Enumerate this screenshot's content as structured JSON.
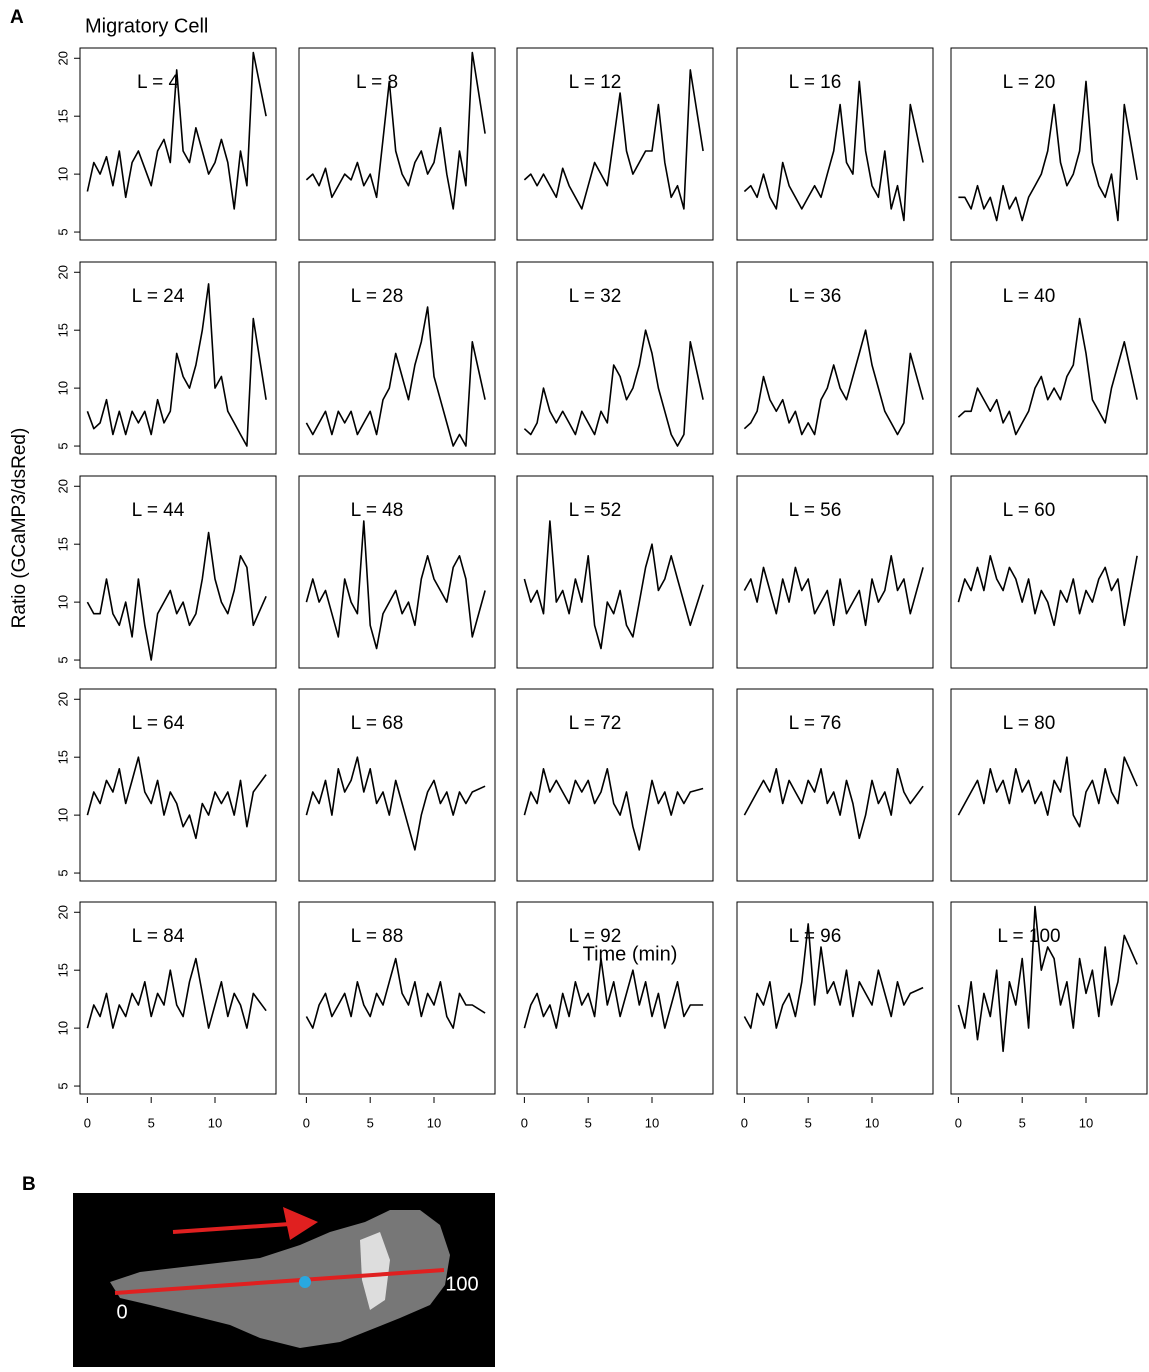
{
  "panel_labels": [
    "A",
    "B"
  ],
  "chart_data": {
    "type": "line",
    "title": "Migratory Cell",
    "xlabel": "Time (min)",
    "ylabel": "Ratio (GCaMP3/dsRed)",
    "xlim": [
      -0.5,
      14.7
    ],
    "ylim": [
      4.4,
      20.8
    ],
    "xticks": [
      0,
      5,
      10
    ],
    "yticks": [
      5,
      10,
      15,
      20
    ],
    "grid": false,
    "x": [
      0,
      0.5,
      1,
      1.5,
      2,
      2.5,
      3,
      3.5,
      4,
      4.5,
      5,
      5.5,
      6,
      6.5,
      7,
      7.5,
      8,
      8.5,
      9,
      9.5,
      10,
      10.5,
      11,
      11.5,
      12,
      12.5,
      13,
      14
    ],
    "series": [
      {
        "name": "L = 4",
        "color": "#000000",
        "values": [
          8.5,
          11,
          10,
          11.5,
          9,
          12,
          8,
          11,
          12,
          10.5,
          9,
          12,
          13,
          11,
          19,
          12,
          11,
          14,
          12,
          10,
          11,
          13,
          11,
          7,
          12,
          9,
          20.5,
          15
        ]
      },
      {
        "name": "L = 8",
        "color": "#000000",
        "values": [
          9.5,
          10,
          9,
          10.5,
          8,
          9,
          10,
          9.5,
          11,
          9,
          10,
          8,
          13,
          18,
          12,
          10,
          9,
          11,
          12,
          10,
          11,
          14,
          10,
          7,
          12,
          9,
          20.5,
          13.5
        ]
      },
      {
        "name": "L = 12",
        "color": "#000000",
        "values": [
          9.5,
          10,
          9,
          10,
          9,
          8,
          10.5,
          9,
          8,
          7,
          9,
          11,
          10,
          9,
          13,
          17,
          12,
          10,
          11,
          12,
          12,
          16,
          11,
          8,
          9,
          7,
          19,
          12
        ]
      },
      {
        "name": "L = 16",
        "color": "#000000",
        "values": [
          8.5,
          9,
          8,
          10,
          8,
          7,
          11,
          9,
          8,
          7,
          8,
          9,
          8,
          10,
          12,
          16,
          11,
          10,
          18,
          12,
          9,
          8,
          12,
          7,
          9,
          6,
          16,
          11
        ]
      },
      {
        "name": "L = 20",
        "color": "#000000",
        "values": [
          8,
          8,
          7,
          9,
          7,
          8,
          6,
          9,
          7,
          8,
          6,
          8,
          9,
          10,
          12,
          16,
          11,
          9,
          10,
          12,
          18,
          11,
          9,
          8,
          10,
          6,
          16,
          9.5
        ]
      },
      {
        "name": "L = 24",
        "color": "#000000",
        "values": [
          8,
          6.5,
          7,
          9,
          6,
          8,
          6,
          8,
          7,
          8,
          6,
          9,
          7,
          8,
          13,
          11,
          10,
          12,
          15,
          19,
          10,
          11,
          8,
          7,
          6,
          5,
          16,
          9
        ]
      },
      {
        "name": "L = 28",
        "color": "#000000",
        "values": [
          7,
          6,
          7,
          8,
          6,
          8,
          7,
          8,
          6,
          7,
          8,
          6,
          9,
          10,
          13,
          11,
          9,
          12,
          14,
          17,
          11,
          9,
          7,
          5,
          6,
          5,
          14,
          9
        ]
      },
      {
        "name": "L = 32",
        "color": "#000000",
        "values": [
          6.5,
          6,
          7,
          10,
          8,
          7,
          8,
          7,
          6,
          8,
          7,
          6,
          8,
          7,
          12,
          11,
          9,
          10,
          12,
          15,
          13,
          10,
          8,
          6,
          5,
          6,
          14,
          9
        ]
      },
      {
        "name": "L = 36",
        "color": "#000000",
        "values": [
          6.5,
          7,
          8,
          11,
          9,
          8,
          9,
          7,
          8,
          6,
          7,
          6,
          9,
          10,
          12,
          10,
          9,
          11,
          13,
          15,
          12,
          10,
          8,
          7,
          6,
          7,
          13,
          9
        ]
      },
      {
        "name": "L = 40",
        "color": "#000000",
        "values": [
          7.5,
          8,
          8,
          10,
          9,
          8,
          9,
          7,
          8,
          6,
          7,
          8,
          10,
          11,
          9,
          10,
          9,
          11,
          12,
          16,
          13,
          9,
          8,
          7,
          10,
          12,
          14,
          9
        ]
      },
      {
        "name": "L = 44",
        "color": "#000000",
        "values": [
          10,
          9,
          9,
          12,
          9,
          8,
          10,
          7,
          12,
          8,
          5,
          9,
          10,
          11,
          9,
          10,
          8,
          9,
          12,
          16,
          12,
          10,
          9,
          11,
          14,
          13,
          8,
          10.5
        ]
      },
      {
        "name": "L = 48",
        "color": "#000000",
        "values": [
          10,
          12,
          10,
          11,
          9,
          7,
          12,
          10,
          9,
          17,
          8,
          6,
          9,
          10,
          11,
          9,
          10,
          8,
          12,
          14,
          12,
          11,
          10,
          13,
          14,
          12,
          7,
          11
        ]
      },
      {
        "name": "L = 52",
        "color": "#000000",
        "values": [
          12,
          10,
          11,
          9,
          17,
          10,
          11,
          9,
          12,
          10,
          14,
          8,
          6,
          10,
          9,
          11,
          8,
          7,
          10,
          13,
          15,
          11,
          12,
          14,
          12,
          10,
          8,
          11.5
        ]
      },
      {
        "name": "L = 56",
        "color": "#000000",
        "values": [
          11,
          12,
          10,
          13,
          11,
          9,
          12,
          10,
          13,
          11,
          12,
          9,
          10,
          11,
          8,
          12,
          9,
          10,
          11,
          8,
          12,
          10,
          11,
          14,
          11,
          12,
          9,
          13
        ]
      },
      {
        "name": "L = 60",
        "color": "#000000",
        "values": [
          10,
          12,
          11,
          13,
          11,
          14,
          12,
          11,
          13,
          12,
          10,
          12,
          9,
          11,
          10,
          8,
          11,
          10,
          12,
          9,
          11,
          10,
          12,
          13,
          11,
          12,
          8,
          14
        ]
      },
      {
        "name": "L = 64",
        "color": "#000000",
        "values": [
          10,
          12,
          11,
          13,
          12,
          14,
          11,
          13,
          15,
          12,
          11,
          13,
          10,
          12,
          11,
          9,
          10,
          8,
          11,
          10,
          12,
          11,
          12,
          10,
          13,
          9,
          12,
          13.5
        ]
      },
      {
        "name": "L = 68",
        "color": "#000000",
        "values": [
          10,
          12,
          11,
          13,
          10,
          14,
          12,
          13,
          15,
          12,
          14,
          11,
          12,
          10,
          13,
          11,
          9,
          7,
          10,
          12,
          13,
          11,
          12,
          10,
          12,
          11,
          12,
          12.5
        ]
      },
      {
        "name": "L = 72",
        "color": "#000000",
        "values": [
          10,
          12,
          11,
          14,
          12,
          13,
          12,
          11,
          13,
          12,
          13,
          11,
          12,
          14,
          11,
          10,
          12,
          9,
          7,
          10,
          13,
          11,
          12,
          10,
          12,
          11,
          12,
          12.3
        ]
      },
      {
        "name": "L = 76",
        "color": "#000000",
        "values": [
          10,
          11,
          12,
          13,
          12,
          14,
          11,
          13,
          12,
          11,
          13,
          12,
          14,
          11,
          12,
          10,
          13,
          11,
          8,
          10,
          13,
          11,
          12,
          10,
          14,
          12,
          11,
          12.5
        ]
      },
      {
        "name": "L = 80",
        "color": "#000000",
        "values": [
          10,
          11,
          12,
          13,
          11,
          14,
          12,
          13,
          11,
          14,
          12,
          13,
          11,
          12,
          10,
          13,
          12,
          15,
          10,
          9,
          12,
          13,
          11,
          14,
          12,
          11,
          15,
          12.5
        ]
      },
      {
        "name": "L = 84",
        "color": "#000000",
        "values": [
          10,
          12,
          11,
          13,
          10,
          12,
          11,
          13,
          12,
          14,
          11,
          13,
          12,
          15,
          12,
          11,
          14,
          16,
          13,
          10,
          12,
          14,
          11,
          13,
          12,
          10,
          13,
          11.5
        ]
      },
      {
        "name": "L = 88",
        "color": "#000000",
        "values": [
          11,
          10,
          12,
          13,
          11,
          12,
          13,
          11,
          14,
          12,
          11,
          13,
          12,
          14,
          16,
          13,
          12,
          14,
          11,
          13,
          12,
          14,
          11,
          10,
          13,
          12,
          12,
          11.3
        ]
      },
      {
        "name": "L = 92",
        "color": "#000000",
        "values": [
          10,
          12,
          13,
          11,
          12,
          10,
          13,
          11,
          14,
          12,
          13,
          11,
          16,
          12,
          14,
          11,
          13,
          15,
          12,
          14,
          11,
          13,
          10,
          12,
          14,
          11,
          12,
          12
        ]
      },
      {
        "name": "L = 96",
        "color": "#000000",
        "values": [
          11,
          10,
          13,
          12,
          14,
          10,
          12,
          13,
          11,
          14,
          19,
          12,
          17,
          13,
          14,
          12,
          15,
          11,
          14,
          13,
          12,
          15,
          13,
          11,
          14,
          12,
          13,
          13.5
        ]
      },
      {
        "name": "L = 100",
        "color": "#000000",
        "values": [
          12,
          10,
          14,
          9,
          13,
          11,
          15,
          8,
          14,
          12,
          16,
          10,
          20.5,
          15,
          17,
          16,
          12,
          14,
          10,
          16,
          13,
          15,
          11,
          17,
          12,
          14,
          18,
          15.5
        ]
      }
    ]
  },
  "image": {
    "start_label": "0",
    "end_label": "100"
  }
}
